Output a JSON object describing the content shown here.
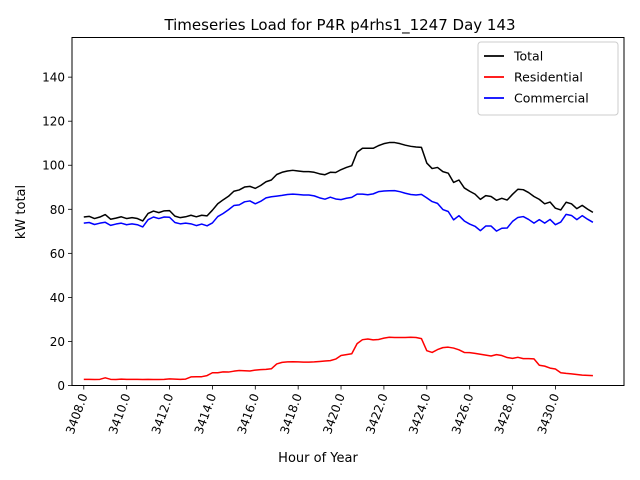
{
  "chart_data": {
    "type": "line",
    "title": "Timeseries Load for P4R p4rhs1_1247  Day 143",
    "xlabel": "Hour of Year",
    "ylabel": "kW total",
    "xlim": [
      3407.45,
      3433.2
    ],
    "ylim": [
      0,
      158
    ],
    "x_ticks": [
      3408,
      3410,
      3412,
      3414,
      3416,
      3418,
      3420,
      3422,
      3424,
      3426,
      3428,
      3430
    ],
    "x_tick_labels": [
      "3408.0",
      "3410.0",
      "3412.0",
      "3414.0",
      "3416.0",
      "3418.0",
      "3420.0",
      "3422.0",
      "3424.0",
      "3426.0",
      "3428.0",
      "3430.0"
    ],
    "y_ticks": [
      0,
      20,
      40,
      60,
      80,
      100,
      120,
      140
    ],
    "y_tick_labels": [
      "0",
      "20",
      "40",
      "60",
      "80",
      "100",
      "120",
      "140"
    ],
    "legend_position": "top-right",
    "series": [
      {
        "name": "Total",
        "color": "#000000",
        "x": [
          3408.0,
          3408.25,
          3408.5,
          3408.75,
          3409.0,
          3409.25,
          3409.5,
          3409.75,
          3410.0,
          3410.25,
          3410.5,
          3410.75,
          3411.0,
          3411.25,
          3411.5,
          3411.75,
          3412.0,
          3412.25,
          3412.5,
          3412.75,
          3413.0,
          3413.25,
          3413.5,
          3413.75,
          3414.0,
          3414.25,
          3414.5,
          3414.75,
          3415.0,
          3415.25,
          3415.5,
          3415.75,
          3416.0,
          3416.25,
          3416.5,
          3416.75,
          3417.0,
          3417.25,
          3417.5,
          3417.75,
          3418.0,
          3418.25,
          3418.5,
          3418.75,
          3419.0,
          3419.25,
          3419.5,
          3419.75,
          3420.0,
          3420.25,
          3420.5,
          3420.75,
          3421.0,
          3421.25,
          3421.5,
          3421.75,
          3422.0,
          3422.25,
          3422.5,
          3422.75,
          3423.0,
          3423.25,
          3423.5,
          3423.75,
          3424.0,
          3424.25,
          3424.5,
          3424.75,
          3425.0,
          3425.25,
          3425.5,
          3425.75,
          3426.0,
          3426.25,
          3426.5,
          3426.75,
          3427.0,
          3427.25,
          3427.5,
          3427.75,
          3428.0,
          3428.25,
          3428.5,
          3428.75,
          3429.0,
          3429.25,
          3429.5,
          3429.75,
          3430.0,
          3430.25,
          3430.5,
          3430.75,
          3431.0,
          3431.25,
          3431.5,
          3431.75
        ],
        "values": [
          76.5,
          76.8,
          75.8,
          76.5,
          77.6,
          75.5,
          76.0,
          76.6,
          75.8,
          76.2,
          75.8,
          74.7,
          78.1,
          79.2,
          78.5,
          79.3,
          79.4,
          76.9,
          76.2,
          76.6,
          77.3,
          76.6,
          77.3,
          77.0,
          79.6,
          82.5,
          84.3,
          85.9,
          88.2,
          88.8,
          90.1,
          90.4,
          89.5,
          90.8,
          92.5,
          93.3,
          95.8,
          96.8,
          97.4,
          97.7,
          97.4,
          97.1,
          97.1,
          96.8,
          96.1,
          95.7,
          96.8,
          96.7,
          98.0,
          99.0,
          99.8,
          105.9,
          107.7,
          107.7,
          107.7,
          108.9,
          109.8,
          110.3,
          110.3,
          109.8,
          109.1,
          108.6,
          108.3,
          108.1,
          101.0,
          98.5,
          99.0,
          97.1,
          96.4,
          92.2,
          93.3,
          89.7,
          88.2,
          86.9,
          84.5,
          86.2,
          85.8,
          84.1,
          85.0,
          84.2,
          86.8,
          89.1,
          88.9,
          87.6,
          85.8,
          84.5,
          82.5,
          83.3,
          80.5,
          79.7,
          83.2,
          82.5,
          80.3,
          81.8,
          80.1,
          78.6
        ]
      },
      {
        "name": "Residential",
        "color": "#ff0000",
        "x": [
          3408.0,
          3408.25,
          3408.5,
          3408.75,
          3409.0,
          3409.25,
          3409.5,
          3409.75,
          3410.0,
          3410.25,
          3410.5,
          3410.75,
          3411.0,
          3411.25,
          3411.5,
          3411.75,
          3412.0,
          3412.25,
          3412.5,
          3412.75,
          3413.0,
          3413.25,
          3413.5,
          3413.75,
          3414.0,
          3414.25,
          3414.5,
          3414.75,
          3415.0,
          3415.25,
          3415.5,
          3415.75,
          3416.0,
          3416.25,
          3416.5,
          3416.75,
          3417.0,
          3417.25,
          3417.5,
          3417.75,
          3418.0,
          3418.25,
          3418.5,
          3418.75,
          3419.0,
          3419.25,
          3419.5,
          3419.75,
          3420.0,
          3420.25,
          3420.5,
          3420.75,
          3421.0,
          3421.25,
          3421.5,
          3421.75,
          3422.0,
          3422.25,
          3422.5,
          3422.75,
          3423.0,
          3423.25,
          3423.5,
          3423.75,
          3424.0,
          3424.25,
          3424.5,
          3424.75,
          3425.0,
          3425.25,
          3425.5,
          3425.75,
          3426.0,
          3426.25,
          3426.5,
          3426.75,
          3427.0,
          3427.25,
          3427.5,
          3427.75,
          3428.0,
          3428.25,
          3428.5,
          3428.75,
          3429.0,
          3429.25,
          3429.5,
          3429.75,
          3430.0,
          3430.25,
          3430.5,
          3430.75,
          3431.0,
          3431.25,
          3431.5,
          3431.75
        ],
        "values": [
          2.8,
          2.8,
          2.7,
          2.8,
          3.5,
          2.8,
          2.7,
          2.9,
          2.8,
          2.8,
          2.8,
          2.7,
          2.8,
          2.7,
          2.7,
          2.8,
          3.0,
          2.9,
          2.8,
          2.9,
          3.9,
          4.0,
          4.0,
          4.5,
          5.8,
          5.8,
          6.2,
          6.1,
          6.5,
          6.8,
          6.7,
          6.6,
          7.0,
          7.2,
          7.3,
          7.6,
          9.8,
          10.5,
          10.7,
          10.8,
          10.7,
          10.6,
          10.6,
          10.7,
          10.9,
          11.1,
          11.3,
          12.0,
          13.6,
          14.0,
          14.4,
          19.0,
          20.8,
          21.1,
          20.7,
          20.9,
          21.5,
          21.9,
          21.8,
          21.8,
          21.8,
          21.9,
          21.8,
          21.3,
          15.8,
          15.0,
          16.3,
          17.2,
          17.4,
          17.0,
          16.2,
          15.0,
          14.9,
          14.6,
          14.2,
          13.8,
          13.4,
          14.0,
          13.6,
          12.7,
          12.3,
          12.8,
          12.2,
          12.2,
          12.1,
          9.2,
          8.8,
          7.9,
          7.5,
          5.8,
          5.5,
          5.3,
          5.0,
          4.7,
          4.6,
          4.5
        ]
      },
      {
        "name": "Commercial",
        "color": "#0000ff",
        "x": [
          3408.0,
          3408.25,
          3408.5,
          3408.75,
          3409.0,
          3409.25,
          3409.5,
          3409.75,
          3410.0,
          3410.25,
          3410.5,
          3410.75,
          3411.0,
          3411.25,
          3411.5,
          3411.75,
          3412.0,
          3412.25,
          3412.5,
          3412.75,
          3413.0,
          3413.25,
          3413.5,
          3413.75,
          3414.0,
          3414.25,
          3414.5,
          3414.75,
          3415.0,
          3415.25,
          3415.5,
          3415.75,
          3416.0,
          3416.25,
          3416.5,
          3416.75,
          3417.0,
          3417.25,
          3417.5,
          3417.75,
          3418.0,
          3418.25,
          3418.5,
          3418.75,
          3419.0,
          3419.25,
          3419.5,
          3419.75,
          3420.0,
          3420.25,
          3420.5,
          3420.75,
          3421.0,
          3421.25,
          3421.5,
          3421.75,
          3422.0,
          3422.25,
          3422.5,
          3422.75,
          3423.0,
          3423.25,
          3423.5,
          3423.75,
          3424.0,
          3424.25,
          3424.5,
          3424.75,
          3425.0,
          3425.25,
          3425.5,
          3425.75,
          3426.0,
          3426.25,
          3426.5,
          3426.75,
          3427.0,
          3427.25,
          3427.5,
          3427.75,
          3428.0,
          3428.25,
          3428.5,
          3428.75,
          3429.0,
          3429.25,
          3429.5,
          3429.75,
          3430.0,
          3430.25,
          3430.5,
          3430.75,
          3431.0,
          3431.25,
          3431.5,
          3431.75
        ],
        "values": [
          73.7,
          74.0,
          73.1,
          73.7,
          74.1,
          72.7,
          73.3,
          73.7,
          73.0,
          73.4,
          73.0,
          72.0,
          75.3,
          76.5,
          75.8,
          76.5,
          76.4,
          74.0,
          73.4,
          73.7,
          73.4,
          72.6,
          73.3,
          72.5,
          73.8,
          76.7,
          78.1,
          79.8,
          81.7,
          82.0,
          83.4,
          83.8,
          82.5,
          83.6,
          85.2,
          85.7,
          86.0,
          86.3,
          86.7,
          86.9,
          86.7,
          86.5,
          86.5,
          86.1,
          85.2,
          84.6,
          85.5,
          84.7,
          84.4,
          85.0,
          85.4,
          86.9,
          86.9,
          86.6,
          87.0,
          88.0,
          88.3,
          88.4,
          88.5,
          88.0,
          87.3,
          86.7,
          86.5,
          86.8,
          85.2,
          83.5,
          82.7,
          79.9,
          79.0,
          75.2,
          77.1,
          74.7,
          73.3,
          72.3,
          70.3,
          72.4,
          72.4,
          70.1,
          71.4,
          71.5,
          74.5,
          76.3,
          76.7,
          75.4,
          73.7,
          75.3,
          73.7,
          75.4,
          73.0,
          74.2,
          77.7,
          77.2,
          75.3,
          77.1,
          75.5,
          74.1
        ]
      }
    ]
  }
}
